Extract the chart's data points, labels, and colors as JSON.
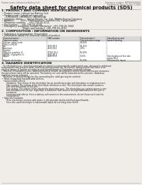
{
  "bg_color": "#f0ede8",
  "title": "Safety data sheet for chemical products (SDS)",
  "header_left": "Product name: Lithium Ion Battery Cell",
  "header_right_line1": "Substance number: NDT455N-00610",
  "header_right_line2": "Established / Revision: Dec.7.2010",
  "section1_title": "1. PRODUCT AND COMPANY IDENTIFICATION",
  "section1_lines": [
    " • Product name: Lithium Ion Battery Cell",
    " • Product code: Cylindrical-type cell",
    "      (UR18650J, UR18650L, UR18650A)",
    " • Company name:      Sanyo Electric Co., Ltd., Mobile Energy Company",
    " • Address:         2001, Kamikosakaue, Sumoto-City, Hyogo, Japan",
    " • Telephone number:    +81-799-26-4111",
    " • Fax number:    +81-799-26-4120",
    " • Emergency telephone number (Weekday): +81-799-26-3842",
    "                              [Night and holiday]: +81-799-26-4101"
  ],
  "section2_title": "2. COMPOSITION / INFORMATION ON INGREDIENTS",
  "section2_intro": " • Substance or preparation: Preparation",
  "section2_sub": " • Information about the chemical nature of product:",
  "table_headers": [
    "Chemical name /",
    "CAS number",
    "Concentration /",
    "Classification and"
  ],
  "table_headers2": [
    "Common name",
    "",
    "Concentration range",
    "hazard labeling"
  ],
  "table_rows": [
    [
      "Lithium cobalt oxide",
      "-",
      "30-60%",
      "-"
    ],
    [
      "(LiMn-Co-PbO4)",
      "",
      "",
      ""
    ],
    [
      "Iron",
      "7439-89-6",
      "15-25%",
      "-"
    ],
    [
      "Aluminum",
      "7429-90-5",
      "2-6%",
      "-"
    ],
    [
      "Graphite",
      "",
      "",
      ""
    ],
    [
      "(Black in graphite-1)",
      "77782-42-5",
      "10-20%",
      "-"
    ],
    [
      "(ARTBC in graphite-1)",
      "7782-44-3",
      "",
      ""
    ],
    [
      "Copper",
      "7440-50-8",
      "5-15%",
      "Sensitization of the skin"
    ],
    [
      "",
      "",
      "",
      "group N4.2"
    ],
    [
      "Organic electrolyte",
      "-",
      "10-20%",
      "Inflammable liquid"
    ]
  ],
  "section3_title": "3. HAZARDS IDENTIFICATION",
  "section3_para": [
    "   For this battery cell, chemical materials are stored in a hermetically sealed metal case, designed to withstand",
    "temperatures and pressure-spike conditions during normal use. As a result, during normal use, there is no",
    "physical danger of ignition or explosion and thermal danger of hazardous materials leakage.",
    "   However, if exposed to a fire, added mechanical shocks, decomposed, armed storms without any measures,",
    "the gas release valve will be operated. The battery cell case will be breached at fire-extreme. Hazardous",
    "materials may be released.",
    "   Moreover, if heated strongly by the surrounding fire, solid gas may be emitted."
  ],
  "section3_sub1": " • Most important hazard and effects:",
  "section3_human": "    Human health effects:",
  "section3_human_lines": [
    "        Inhalation: The release of the electrolyte has an anesthesia action and stimulates in respiratory tract.",
    "        Skin contact: The release of the electrolyte stimulates a skin. The electrolyte skin contact causes a",
    "        sore and stimulation on the skin.",
    "        Eye contact: The release of the electrolyte stimulates eyes. The electrolyte eye contact causes a sore",
    "        and stimulation on the eye. Especially, a substance that causes a strong inflammation of the eyes is",
    "        contained.",
    "        Environmental effects: Since a battery cell remains in the environment, do not throw out it into the",
    "        environment."
  ],
  "section3_sub2": " • Specific hazards:",
  "section3_specific_lines": [
    "        If the electrolyte contacts with water, it will generate detrimental hydrogen fluoride.",
    "        Since the used electrolyte is inflammable liquid, do not bring close to fire."
  ]
}
